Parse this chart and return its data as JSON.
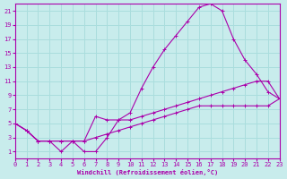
{
  "xlabel": "Windchill (Refroidissement éolien,°C)",
  "bg_color": "#c8ecec",
  "grid_color": "#aadddd",
  "line_color": "#aa00aa",
  "line1_x": [
    0,
    1,
    2,
    3,
    4,
    5,
    6,
    7,
    8,
    9,
    10,
    11,
    12,
    13,
    14,
    15,
    16,
    17,
    18,
    19,
    20,
    21,
    22,
    23
  ],
  "line1_y": [
    5,
    4,
    2.5,
    2.5,
    1,
    2.5,
    1,
    1,
    3,
    5.5,
    6.5,
    10,
    13,
    15.5,
    17.5,
    19.5,
    21.5,
    22,
    21,
    17,
    14,
    12,
    9.5,
    8.5
  ],
  "line2_x": [
    0,
    1,
    2,
    3,
    4,
    5,
    6,
    7,
    8,
    9,
    10,
    11,
    12,
    13,
    14,
    15,
    16,
    17,
    18,
    19,
    20,
    21,
    22,
    23
  ],
  "line2_y": [
    5,
    4,
    2.5,
    2.5,
    2.5,
    2.5,
    2.5,
    6,
    5.5,
    5.5,
    5.5,
    6,
    6.5,
    7,
    7.5,
    8,
    8.5,
    9,
    9.5,
    10,
    10.5,
    11,
    11,
    8.5
  ],
  "line3_x": [
    0,
    1,
    2,
    3,
    4,
    5,
    6,
    7,
    8,
    9,
    10,
    11,
    12,
    13,
    14,
    15,
    16,
    17,
    18,
    19,
    20,
    21,
    22,
    23
  ],
  "line3_y": [
    5,
    4,
    2.5,
    2.5,
    2.5,
    2.5,
    2.5,
    3,
    3.5,
    4,
    4.5,
    5,
    5.5,
    6,
    6.5,
    7,
    7.5,
    7.5,
    7.5,
    7.5,
    7.5,
    7.5,
    7.5,
    8.5
  ],
  "xlim": [
    0,
    23
  ],
  "ylim": [
    0,
    22
  ],
  "yticks": [
    1,
    3,
    5,
    7,
    9,
    11,
    13,
    15,
    17,
    19,
    21
  ],
  "xticks": [
    0,
    1,
    2,
    3,
    4,
    5,
    6,
    7,
    8,
    9,
    10,
    11,
    12,
    13,
    14,
    15,
    16,
    17,
    18,
    19,
    20,
    21,
    22,
    23
  ]
}
